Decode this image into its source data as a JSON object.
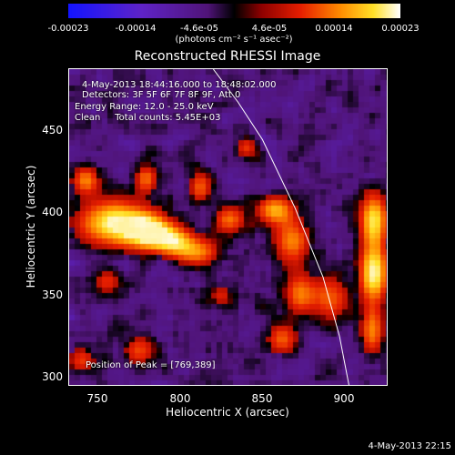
{
  "chart_data": {
    "type": "heatmap",
    "title": "Reconstructed RHESSI Image",
    "xlabel": "Heliocentric X (arcsec)",
    "ylabel": "Heliocentric Y (arcsec)",
    "xlim": [
      732,
      927
    ],
    "ylim": [
      296,
      490
    ],
    "xticks": [
      "750",
      "800",
      "850",
      "900"
    ],
    "yticks": [
      "300",
      "350",
      "400",
      "450"
    ],
    "colorbar": {
      "ticks": [
        "-0.00023",
        "-0.00014",
        "-4.6e-05",
        "4.6e-05",
        "0.00014",
        "0.00023"
      ],
      "units": "(photons cm⁻² s⁻¹ asec⁻²)",
      "range": [
        -0.00023,
        0.00023
      ]
    },
    "annotations": {
      "time_range": "4-May-2013 18:44:16.000 to 18:48:02.000",
      "detectors": "Detectors: 3F 5F 6F 7F 8F 9F, Att 0",
      "energy": "Energy Range: 12.0 - 25.0 keV",
      "clean": "Clean     Total counts: 5.45E+03",
      "peak": "Position of Peak = [769,389]"
    },
    "hot_regions": [
      {
        "x": 760,
        "y": 396,
        "sx": 16,
        "sy": 10,
        "amp": 1.0
      },
      {
        "x": 781,
        "y": 391,
        "sx": 10,
        "sy": 7,
        "amp": 0.85
      },
      {
        "x": 795,
        "y": 385,
        "sx": 10,
        "sy": 6,
        "amp": 0.7
      },
      {
        "x": 810,
        "y": 378,
        "sx": 10,
        "sy": 6,
        "amp": 0.6
      },
      {
        "x": 830,
        "y": 398,
        "sx": 7,
        "sy": 6,
        "amp": 0.6
      },
      {
        "x": 858,
        "y": 404,
        "sx": 8,
        "sy": 6,
        "amp": 0.75
      },
      {
        "x": 868,
        "y": 385,
        "sx": 8,
        "sy": 10,
        "amp": 0.65
      },
      {
        "x": 873,
        "y": 353,
        "sx": 7,
        "sy": 9,
        "amp": 0.6
      },
      {
        "x": 892,
        "y": 350,
        "sx": 8,
        "sy": 10,
        "amp": 0.55
      },
      {
        "x": 918,
        "y": 365,
        "sx": 6,
        "sy": 12,
        "amp": 1.0
      },
      {
        "x": 918,
        "y": 398,
        "sx": 6,
        "sy": 12,
        "amp": 0.9
      },
      {
        "x": 917,
        "y": 330,
        "sx": 5,
        "sy": 10,
        "amp": 0.65
      },
      {
        "x": 742,
        "y": 422,
        "sx": 6,
        "sy": 6,
        "amp": 0.65
      },
      {
        "x": 779,
        "y": 423,
        "sx": 5,
        "sy": 6,
        "amp": 0.6
      },
      {
        "x": 812,
        "y": 418,
        "sx": 5,
        "sy": 7,
        "amp": 0.55
      },
      {
        "x": 840,
        "y": 442,
        "sx": 5,
        "sy": 5,
        "amp": 0.45
      },
      {
        "x": 755,
        "y": 360,
        "sx": 6,
        "sy": 5,
        "amp": 0.45
      },
      {
        "x": 775,
        "y": 318,
        "sx": 7,
        "sy": 7,
        "amp": 0.5
      },
      {
        "x": 740,
        "y": 312,
        "sx": 6,
        "sy": 6,
        "amp": 0.5
      },
      {
        "x": 862,
        "y": 325,
        "sx": 7,
        "sy": 7,
        "amp": 0.55
      },
      {
        "x": 825,
        "y": 352,
        "sx": 5,
        "sy": 5,
        "amp": 0.4
      }
    ],
    "limb_curve": [
      [
        820,
        490
      ],
      [
        835,
        470
      ],
      [
        850,
        447
      ],
      [
        870,
        405
      ],
      [
        887,
        363
      ],
      [
        897,
        327
      ],
      [
        903,
        296
      ]
    ]
  },
  "footer_date": "4-May-2013 22:15"
}
